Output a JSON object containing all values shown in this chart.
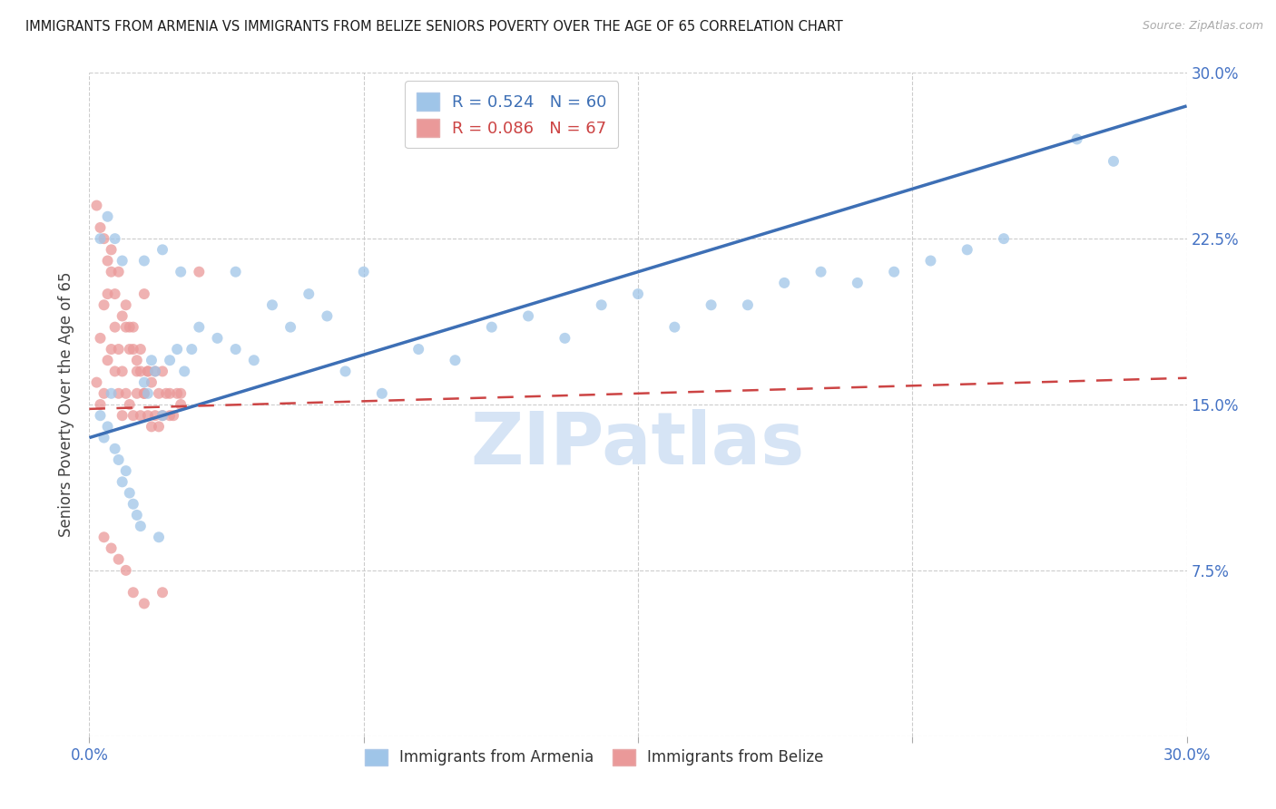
{
  "title": "IMMIGRANTS FROM ARMENIA VS IMMIGRANTS FROM BELIZE SENIORS POVERTY OVER THE AGE OF 65 CORRELATION CHART",
  "source": "Source: ZipAtlas.com",
  "ylabel": "Seniors Poverty Over the Age of 65",
  "legend_label_blue": "Immigrants from Armenia",
  "legend_label_pink": "Immigrants from Belize",
  "R_blue": 0.524,
  "N_blue": 60,
  "R_pink": 0.086,
  "N_pink": 67,
  "xmin": 0.0,
  "xmax": 0.3,
  "ymin": 0.0,
  "ymax": 0.3,
  "blue_color": "#9fc5e8",
  "pink_color": "#ea9999",
  "blue_line_color": "#3d6fb5",
  "pink_line_color": "#cc4444",
  "watermark_text": "ZIPatlas",
  "watermark_color": "#d6e4f5",
  "title_color": "#1a1a1a",
  "axis_color": "#4472c4",
  "background_color": "#ffffff",
  "scatter_alpha": 0.75,
  "scatter_size": 75,
  "blue_x": [
    0.003,
    0.004,
    0.005,
    0.006,
    0.007,
    0.008,
    0.009,
    0.01,
    0.011,
    0.012,
    0.013,
    0.014,
    0.015,
    0.016,
    0.017,
    0.018,
    0.019,
    0.02,
    0.022,
    0.024,
    0.026,
    0.028,
    0.03,
    0.035,
    0.04,
    0.045,
    0.05,
    0.055,
    0.06,
    0.065,
    0.07,
    0.075,
    0.08,
    0.09,
    0.1,
    0.11,
    0.12,
    0.13,
    0.14,
    0.15,
    0.16,
    0.17,
    0.18,
    0.19,
    0.2,
    0.21,
    0.22,
    0.23,
    0.24,
    0.25,
    0.003,
    0.005,
    0.007,
    0.009,
    0.015,
    0.02,
    0.025,
    0.04,
    0.27,
    0.28
  ],
  "blue_y": [
    0.145,
    0.135,
    0.14,
    0.155,
    0.13,
    0.125,
    0.115,
    0.12,
    0.11,
    0.105,
    0.1,
    0.095,
    0.16,
    0.155,
    0.17,
    0.165,
    0.09,
    0.145,
    0.17,
    0.175,
    0.165,
    0.175,
    0.185,
    0.18,
    0.175,
    0.17,
    0.195,
    0.185,
    0.2,
    0.19,
    0.165,
    0.21,
    0.155,
    0.175,
    0.17,
    0.185,
    0.19,
    0.18,
    0.195,
    0.2,
    0.185,
    0.195,
    0.195,
    0.205,
    0.21,
    0.205,
    0.21,
    0.215,
    0.22,
    0.225,
    0.225,
    0.235,
    0.225,
    0.215,
    0.215,
    0.22,
    0.21,
    0.21,
    0.27,
    0.26
  ],
  "pink_x": [
    0.002,
    0.003,
    0.003,
    0.004,
    0.004,
    0.005,
    0.005,
    0.006,
    0.006,
    0.007,
    0.007,
    0.008,
    0.008,
    0.009,
    0.009,
    0.01,
    0.01,
    0.011,
    0.011,
    0.012,
    0.012,
    0.013,
    0.013,
    0.014,
    0.014,
    0.015,
    0.015,
    0.016,
    0.016,
    0.017,
    0.017,
    0.018,
    0.018,
    0.019,
    0.019,
    0.02,
    0.02,
    0.021,
    0.022,
    0.023,
    0.024,
    0.025,
    0.002,
    0.003,
    0.004,
    0.005,
    0.006,
    0.007,
    0.008,
    0.009,
    0.01,
    0.011,
    0.012,
    0.013,
    0.014,
    0.015,
    0.016,
    0.025,
    0.03,
    0.022,
    0.004,
    0.006,
    0.008,
    0.01,
    0.012,
    0.015,
    0.02
  ],
  "pink_y": [
    0.16,
    0.15,
    0.18,
    0.155,
    0.195,
    0.17,
    0.2,
    0.175,
    0.21,
    0.165,
    0.185,
    0.155,
    0.175,
    0.145,
    0.165,
    0.155,
    0.195,
    0.15,
    0.185,
    0.145,
    0.175,
    0.155,
    0.17,
    0.145,
    0.165,
    0.155,
    0.2,
    0.145,
    0.165,
    0.14,
    0.16,
    0.145,
    0.165,
    0.14,
    0.155,
    0.145,
    0.165,
    0.155,
    0.155,
    0.145,
    0.155,
    0.15,
    0.24,
    0.23,
    0.225,
    0.215,
    0.22,
    0.2,
    0.21,
    0.19,
    0.185,
    0.175,
    0.185,
    0.165,
    0.175,
    0.155,
    0.165,
    0.155,
    0.21,
    0.145,
    0.09,
    0.085,
    0.08,
    0.075,
    0.065,
    0.06,
    0.065
  ]
}
